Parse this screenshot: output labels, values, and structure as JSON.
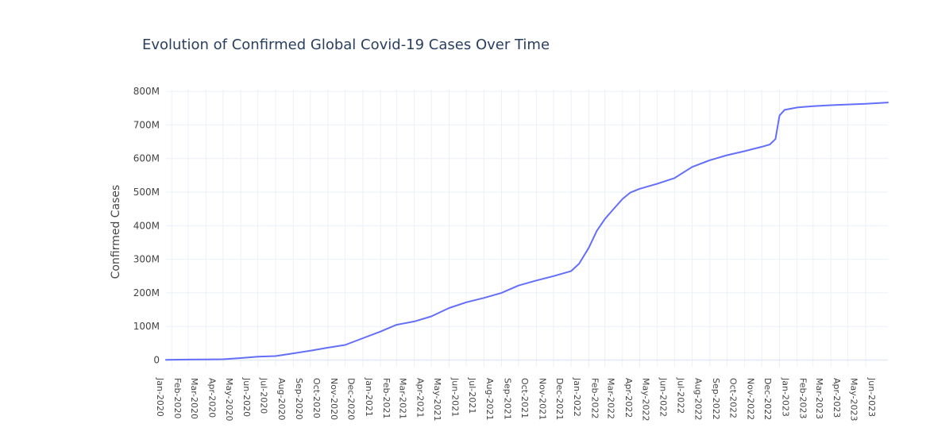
{
  "chart_data": {
    "type": "line",
    "title": "Evolution of Confirmed Global Covid-19 Cases Over Time",
    "xlabel": "",
    "ylabel": "Confirmed Cases",
    "x_range": [
      "2020-01-22",
      "2023-07-10"
    ],
    "ylim": [
      -20000000,
      805000000
    ],
    "y_ticks": [
      0,
      100000000,
      200000000,
      300000000,
      400000000,
      500000000,
      600000000,
      700000000,
      800000000
    ],
    "y_tick_labels": [
      "0",
      "100M",
      "200M",
      "300M",
      "400M",
      "500M",
      "600M",
      "700M",
      "800M"
    ],
    "x_ticks": [
      "2020-01-01",
      "2020-02-01",
      "2020-03-01",
      "2020-04-01",
      "2020-05-01",
      "2020-06-01",
      "2020-07-01",
      "2020-08-01",
      "2020-09-01",
      "2020-10-01",
      "2020-11-01",
      "2020-12-01",
      "2021-01-01",
      "2021-02-01",
      "2021-03-01",
      "2021-04-01",
      "2021-05-01",
      "2021-06-01",
      "2021-07-01",
      "2021-08-01",
      "2021-09-01",
      "2021-10-01",
      "2021-11-01",
      "2021-12-01",
      "2022-01-01",
      "2022-02-01",
      "2022-03-01",
      "2022-04-01",
      "2022-05-01",
      "2022-06-01",
      "2022-07-01",
      "2022-08-01",
      "2022-09-01",
      "2022-10-01",
      "2022-11-01",
      "2022-12-01",
      "2023-01-01",
      "2023-02-01",
      "2023-03-01",
      "2023-04-01",
      "2023-05-01",
      "2023-06-01"
    ],
    "x_tick_labels": [
      "Jan-2020",
      "Feb-2020",
      "Mar-2020",
      "Apr-2020",
      "May-2020",
      "Jun-2020",
      "Jul-2020",
      "Aug-2020",
      "Sep-2020",
      "Oct-2020",
      "Nov-2020",
      "Dec-2020",
      "Jan-2021",
      "Feb-2021",
      "Mar-2021",
      "Apr-2021",
      "May-2021",
      "Jun-2021",
      "Jul-2021",
      "Aug-2021",
      "Sep-2021",
      "Oct-2021",
      "Nov-2021",
      "Dec-2021",
      "Jan-2022",
      "Feb-2022",
      "Mar-2022",
      "Apr-2022",
      "May-2022",
      "Jun-2022",
      "Jul-2022",
      "Aug-2022",
      "Sep-2022",
      "Oct-2022",
      "Nov-2022",
      "Dec-2022",
      "Jan-2023",
      "Feb-2023",
      "Mar-2023",
      "Apr-2023",
      "May-2023",
      "Jun-2023"
    ],
    "grid": true,
    "line_color": "#636efa",
    "series": [
      {
        "x": [
          "2020-01-22",
          "2020-02-01",
          "2020-03-01",
          "2020-04-01",
          "2020-05-01",
          "2020-06-01",
          "2020-07-01",
          "2020-08-01",
          "2020-09-01",
          "2020-10-01",
          "2020-11-01",
          "2020-12-01",
          "2021-01-01",
          "2021-02-01",
          "2021-03-01",
          "2021-04-01",
          "2021-05-01",
          "2021-06-01",
          "2021-07-01",
          "2021-08-01",
          "2021-09-01",
          "2021-10-01",
          "2021-11-01",
          "2021-12-01",
          "2022-01-01",
          "2022-01-15",
          "2022-02-01",
          "2022-02-15",
          "2022-03-01",
          "2022-03-15",
          "2022-04-01",
          "2022-04-15",
          "2022-05-01",
          "2022-06-01",
          "2022-07-01",
          "2022-08-01",
          "2022-09-01",
          "2022-10-01",
          "2022-11-01",
          "2022-12-01",
          "2022-12-15",
          "2022-12-25",
          "2023-01-01",
          "2023-01-10",
          "2023-02-01",
          "2023-03-01",
          "2023-04-01",
          "2023-05-01",
          "2023-06-01",
          "2023-07-10"
        ],
        "y": [
          600000,
          1000000,
          1500000,
          2000000,
          2500000,
          6000000,
          10000000,
          12000000,
          20000000,
          28000000,
          37000000,
          45000000,
          65000000,
          85000000,
          105000000,
          115000000,
          130000000,
          155000000,
          172000000,
          185000000,
          200000000,
          222000000,
          237000000,
          250000000,
          265000000,
          287000000,
          335000000,
          385000000,
          420000000,
          447000000,
          480000000,
          499000000,
          510000000,
          525000000,
          542000000,
          575000000,
          595000000,
          610000000,
          622000000,
          635000000,
          642000000,
          658000000,
          728000000,
          745000000,
          752000000,
          756000000,
          759000000,
          761000000,
          763000000,
          767000000
        ]
      }
    ]
  }
}
